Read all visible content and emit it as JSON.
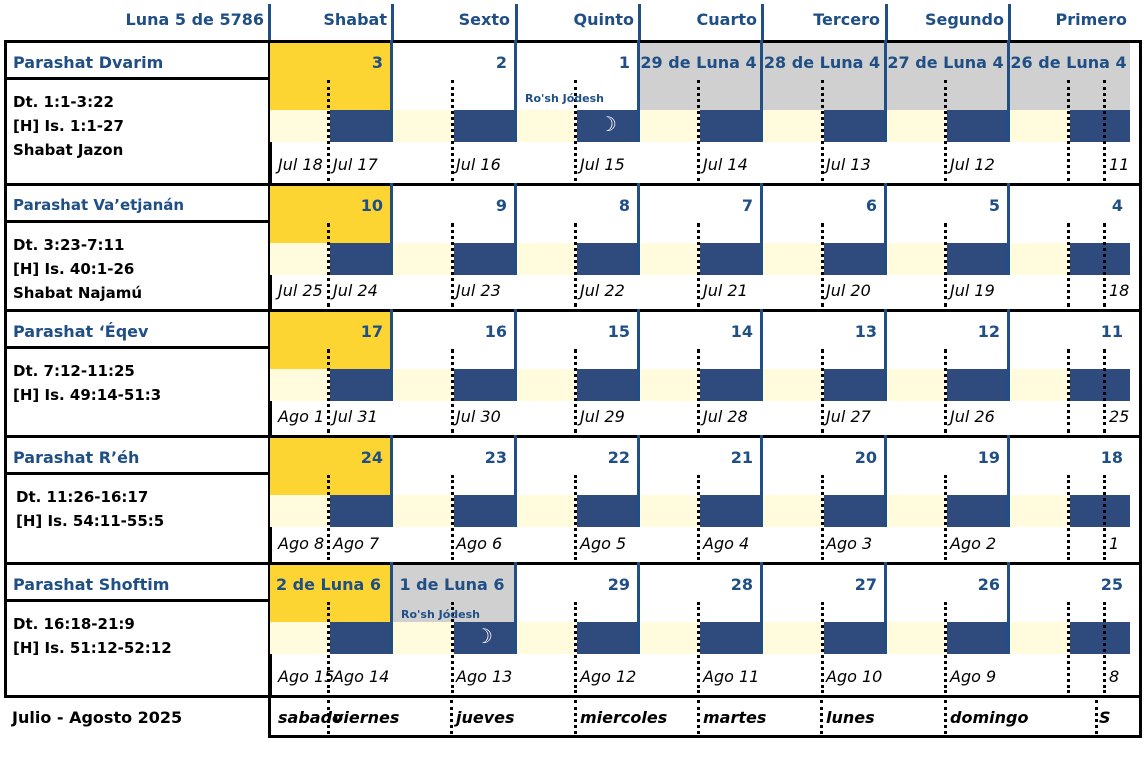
{
  "header": {
    "month_title": "Luna 5 de 5786",
    "days": [
      "Shabat",
      "Sexto",
      "Quinto",
      "Cuarto",
      "Tercero",
      "Segundo",
      "Primero"
    ]
  },
  "weeks": [
    {
      "parashah": "Parashat Dvarim",
      "refs": [
        "Dt. 1:1-3:22",
        "[H] Is. 1:1-27",
        "Shabat Jazon"
      ],
      "nums": [
        "3",
        "2",
        "1",
        "29 de Luna 4",
        "28 de Luna 4",
        "27 de Luna 4",
        "26 de Luna 4"
      ],
      "greg": [
        "Jul 18",
        "Jul 17",
        "Jul 16",
        "Jul 15",
        "Jul 14",
        "Jul 13",
        "Jul 12",
        "11"
      ],
      "rosh": "Ro'sh Jódesh"
    },
    {
      "parashah": "Parashat Va’etjanán",
      "refs": [
        "Dt. 3:23-7:11",
        "[H] Is. 40:1-26",
        "Shabat Najamú"
      ],
      "nums": [
        "10",
        "9",
        "8",
        "7",
        "6",
        "5",
        "4"
      ],
      "greg": [
        "Jul 25",
        "Jul 24",
        "Jul 23",
        "Jul 22",
        "Jul 21",
        "Jul 20",
        "Jul 19",
        "18"
      ]
    },
    {
      "parashah": "Parashat ‘Éqev",
      "refs": [
        "Dt. 7:12-11:25",
        "[H] Is. 49:14-51:3"
      ],
      "nums": [
        "17",
        "16",
        "15",
        "14",
        "13",
        "12",
        "11"
      ],
      "greg": [
        "Ago 1",
        "Jul 31",
        "Jul 30",
        "Jul 29",
        "Jul 28",
        "Jul 27",
        "Jul 26",
        "25"
      ]
    },
    {
      "parashah": "Parashat R’éh",
      "refs": [
        "Dt. 11:26-16:17",
        "[H] Is. 54:11-55:5"
      ],
      "nums": [
        "24",
        "23",
        "22",
        "21",
        "20",
        "19",
        "18"
      ],
      "greg": [
        "Ago 8",
        "Ago 7",
        "Ago 6",
        "Ago 5",
        "Ago 4",
        "Ago 3",
        "Ago 2",
        "1"
      ]
    },
    {
      "parashah": "Parashat Shoftim",
      "refs": [
        "Dt. 16:18-21:9",
        "[H] Is. 51:12-52:12"
      ],
      "nums": [
        "2 de Luna 6",
        "1 de Luna 6",
        "29",
        "28",
        "27",
        "26",
        "25"
      ],
      "greg": [
        "Ago 15",
        "Ago 14",
        "Ago 13",
        "Ago 12",
        "Ago 11",
        "Ago 10",
        "Ago 9",
        "8"
      ],
      "rosh": "Ro'sh Jódesh"
    }
  ],
  "footer": {
    "label": "Julio - Agosto 2025",
    "weekdays": [
      "sabado",
      "viernes",
      "jueves",
      "miercoles",
      "martes",
      "lunes",
      "domingo",
      "S"
    ]
  },
  "icons": {
    "moon": "☽"
  },
  "colors": {
    "accent": "#1f4f85",
    "shabat": "#fcd532",
    "prev_month": "#d0d0d0",
    "strip_dark": "#2f4a7c",
    "strip_light": "#fffbdc"
  }
}
